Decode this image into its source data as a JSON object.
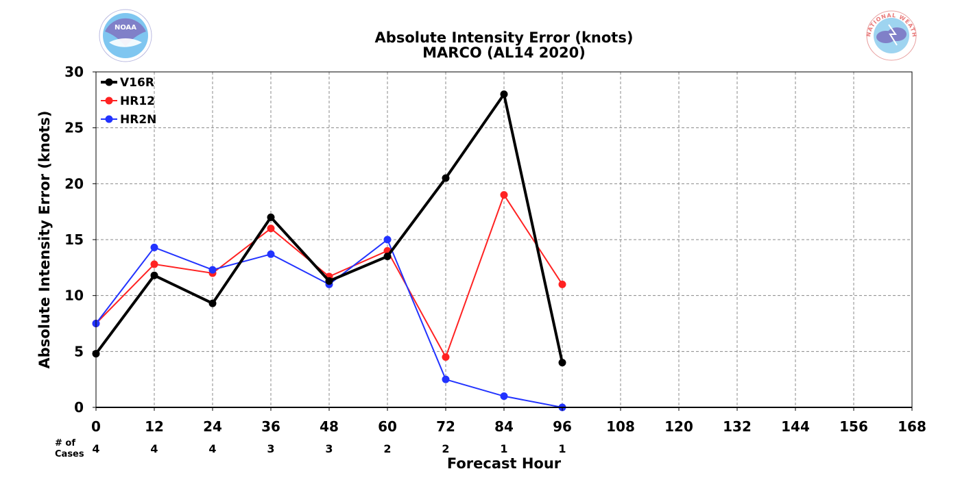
{
  "chart_data": {
    "type": "line",
    "title": "Absolute Intensity Error (knots)",
    "subtitle": "MARCO (AL14 2020)",
    "xlabel": "Forecast Hour",
    "ylabel": "Absolute Intensity Error (knots)",
    "xlim": [
      0,
      168
    ],
    "ylim": [
      0,
      30
    ],
    "x_ticks": [
      "0",
      "12",
      "24",
      "36",
      "48",
      "60",
      "72",
      "84",
      "96",
      "108",
      "120",
      "132",
      "144",
      "156",
      "168"
    ],
    "y_ticks": [
      "0",
      "5",
      "10",
      "15",
      "20",
      "25",
      "30"
    ],
    "grid": true,
    "legend_position": "top-left",
    "cases_label": "# of\nCases",
    "cases": [
      {
        "x": 0,
        "n": "4"
      },
      {
        "x": 12,
        "n": "4"
      },
      {
        "x": 24,
        "n": "4"
      },
      {
        "x": 36,
        "n": "3"
      },
      {
        "x": 48,
        "n": "3"
      },
      {
        "x": 60,
        "n": "2"
      },
      {
        "x": 72,
        "n": "2"
      },
      {
        "x": 84,
        "n": "1"
      },
      {
        "x": 96,
        "n": "1"
      }
    ],
    "series": [
      {
        "name": "V16R",
        "color": "#000000",
        "x": [
          0,
          12,
          24,
          36,
          48,
          60,
          72,
          84,
          96
        ],
        "y": [
          4.8,
          11.8,
          9.3,
          17.0,
          11.3,
          13.5,
          20.5,
          28.0,
          4.0
        ]
      },
      {
        "name": "HR12",
        "color": "#ff2222",
        "x": [
          0,
          12,
          24,
          36,
          48,
          60,
          72,
          84,
          96
        ],
        "y": [
          7.5,
          12.8,
          12.0,
          16.0,
          11.7,
          14.0,
          4.5,
          19.0,
          11.0
        ]
      },
      {
        "name": "HR2N",
        "color": "#2233ff",
        "x": [
          0,
          12,
          24,
          36,
          48,
          60,
          72,
          84,
          96
        ],
        "y": [
          7.5,
          14.3,
          12.3,
          13.7,
          11.0,
          15.0,
          2.5,
          1.0,
          0.0
        ]
      }
    ]
  },
  "logos": {
    "left": {
      "icon": "noaa-logo-icon",
      "text": "NOAA",
      "colors": [
        "#7fc6f0",
        "#8080c8"
      ]
    },
    "right": {
      "icon": "nws-logo-icon",
      "text": "NATIONAL WEATHER SERVICE",
      "colors": [
        "#e87878",
        "#8080c8"
      ]
    }
  }
}
